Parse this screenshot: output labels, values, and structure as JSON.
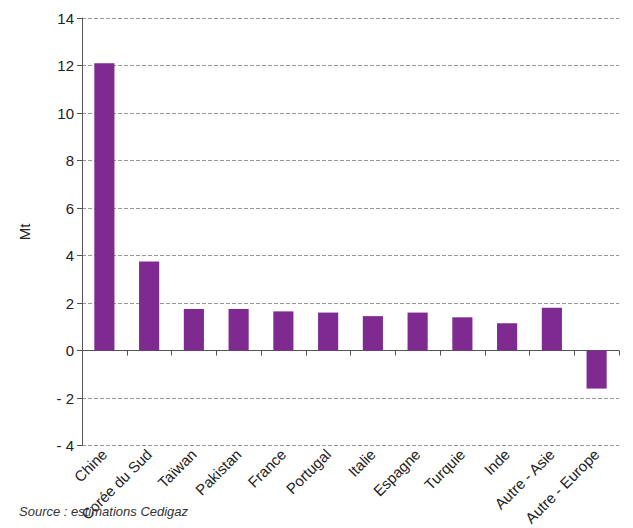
{
  "chart_data": {
    "type": "bar",
    "y_label": "Mt",
    "source": "Source : estimations Cedigaz",
    "categories": [
      "Chine",
      "Corée du Sud",
      "Taïwan",
      "Pakistan",
      "France",
      "Portugal",
      "Italie",
      "Espagne",
      "Turquie",
      "Inde",
      "Autre - Asie",
      "Autre - Europe"
    ],
    "values": [
      12.1,
      3.75,
      1.75,
      1.75,
      1.65,
      1.6,
      1.45,
      1.6,
      1.4,
      1.15,
      1.8,
      -1.6
    ],
    "color": "#7e2a90",
    "ylim": [
      -4,
      14
    ],
    "yticks": [
      {
        "value": -4,
        "label": "- 4"
      },
      {
        "value": -2,
        "label": "- 2"
      },
      0,
      2,
      4,
      6,
      8,
      10,
      12,
      14
    ],
    "grid": true
  }
}
